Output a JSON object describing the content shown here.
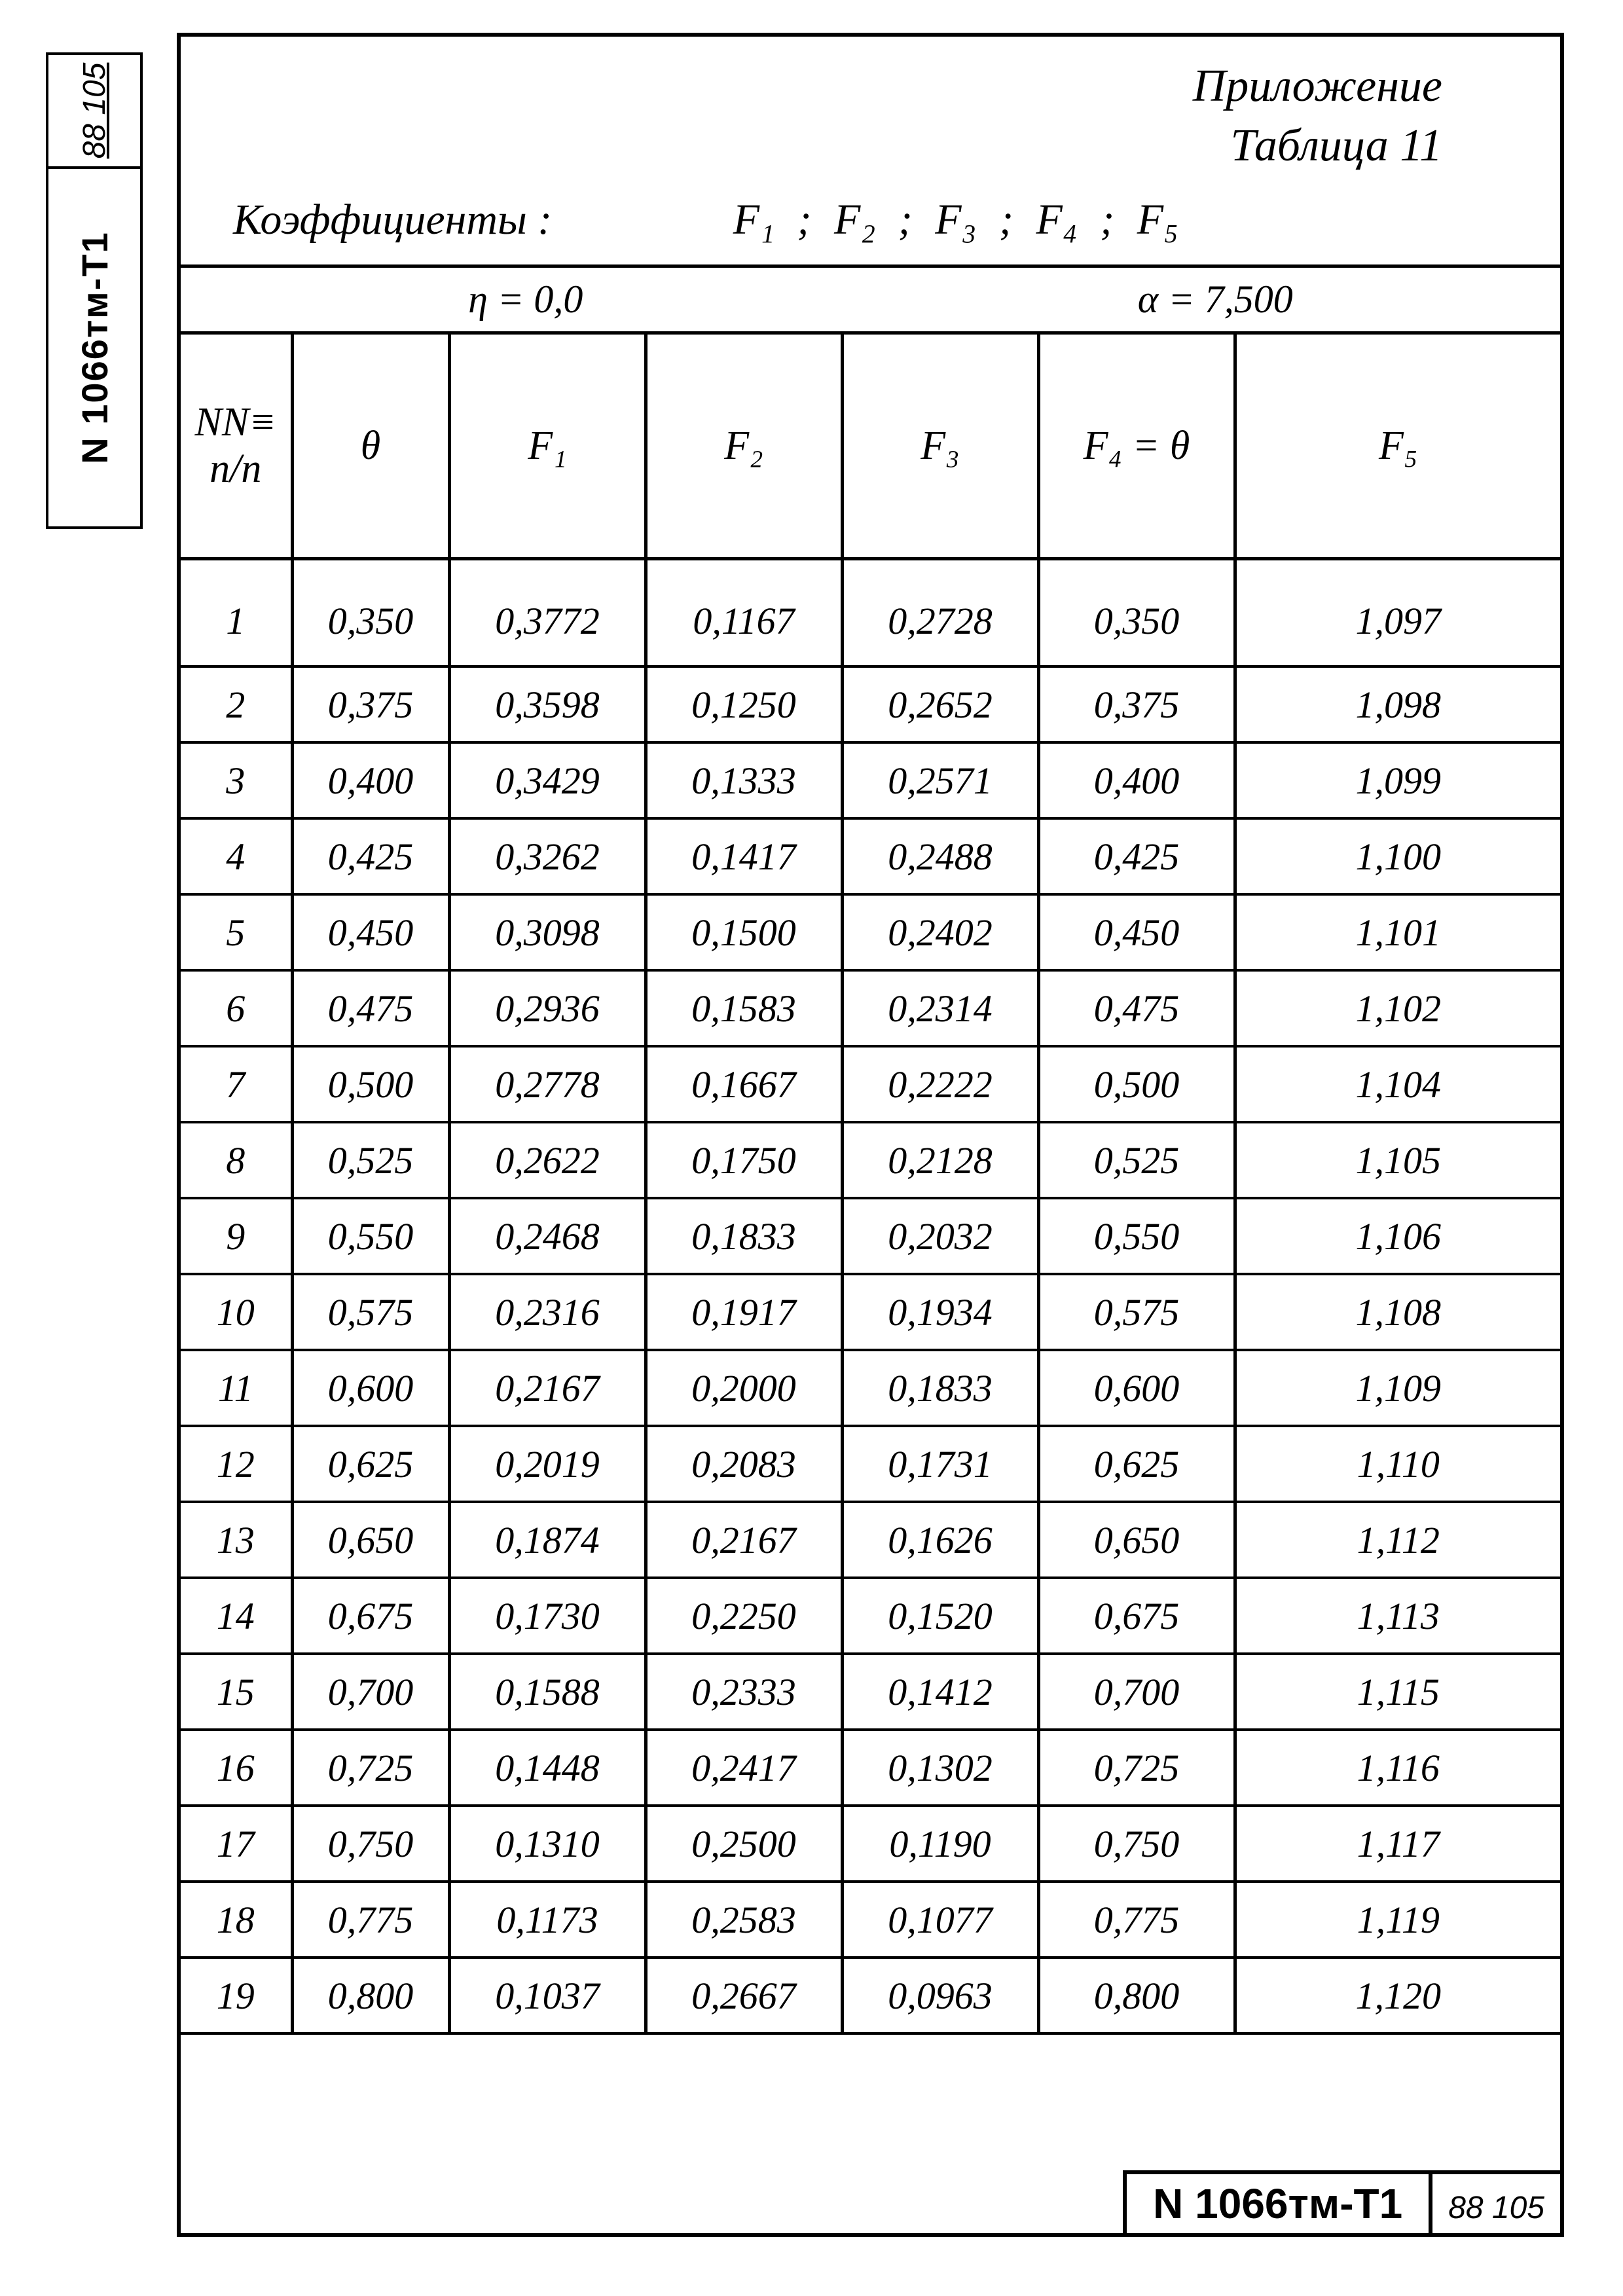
{
  "doc_number": "N 1066тм-Т1",
  "page_number": "88 105",
  "appendix": "Приложение",
  "table_label": "Таблица 11",
  "coef_label": "Коэффициенты :",
  "coef_list": "F₁ ;  F₂ ;  F₃ ;  F₄ ; F₅",
  "param_eta": "η = 0,0",
  "param_alpha": "α = 7,500",
  "columns": [
    "NN≡\nп/п",
    "θ",
    "F₁",
    "F₂",
    "F₃",
    "F₄ = θ",
    "F₅"
  ],
  "rows": [
    [
      "1",
      "0,350",
      "0,3772",
      "0,1167",
      "0,2728",
      "0,350",
      "1,097"
    ],
    [
      "2",
      "0,375",
      "0,3598",
      "0,1250",
      "0,2652",
      "0,375",
      "1,098"
    ],
    [
      "3",
      "0,400",
      "0,3429",
      "0,1333",
      "0,2571",
      "0,400",
      "1,099"
    ],
    [
      "4",
      "0,425",
      "0,3262",
      "0,1417",
      "0,2488",
      "0,425",
      "1,100"
    ],
    [
      "5",
      "0,450",
      "0,3098",
      "0,1500",
      "0,2402",
      "0,450",
      "1,101"
    ],
    [
      "6",
      "0,475",
      "0,2936",
      "0,1583",
      "0,2314",
      "0,475",
      "1,102"
    ],
    [
      "7",
      "0,500",
      "0,2778",
      "0,1667",
      "0,2222",
      "0,500",
      "1,104"
    ],
    [
      "8",
      "0,525",
      "0,2622",
      "0,1750",
      "0,2128",
      "0,525",
      "1,105"
    ],
    [
      "9",
      "0,550",
      "0,2468",
      "0,1833",
      "0,2032",
      "0,550",
      "1,106"
    ],
    [
      "10",
      "0,575",
      "0,2316",
      "0,1917",
      "0,1934",
      "0,575",
      "1,108"
    ],
    [
      "11",
      "0,600",
      "0,2167",
      "0,2000",
      "0,1833",
      "0,600",
      "1,109"
    ],
    [
      "12",
      "0,625",
      "0,2019",
      "0,2083",
      "0,1731",
      "0,625",
      "1,110"
    ],
    [
      "13",
      "0,650",
      "0,1874",
      "0,2167",
      "0,1626",
      "0,650",
      "1,112"
    ],
    [
      "14",
      "0,675",
      "0,1730",
      "0,2250",
      "0,1520",
      "0,675",
      "1,113"
    ],
    [
      "15",
      "0,700",
      "0,1588",
      "0,2333",
      "0,1412",
      "0,700",
      "1,115"
    ],
    [
      "16",
      "0,725",
      "0,1448",
      "0,2417",
      "0,1302",
      "0,725",
      "1,116"
    ],
    [
      "17",
      "0,750",
      "0,1310",
      "0,2500",
      "0,1190",
      "0,750",
      "1,117"
    ],
    [
      "18",
      "0,775",
      "0,1173",
      "0,2583",
      "0,1077",
      "0,775",
      "1,119"
    ],
    [
      "19",
      "0,800",
      "0,1037",
      "0,2667",
      "0,0963",
      "0,800",
      "1,120"
    ]
  ]
}
